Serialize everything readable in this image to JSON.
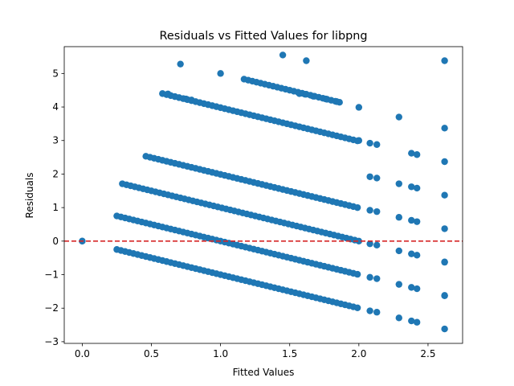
{
  "chart_data": {
    "type": "scatter",
    "title": "Residuals vs Fitted Values for libpng",
    "xlabel": "Fitted Values",
    "ylabel": "Residuals",
    "xlim": [
      -0.13,
      2.75
    ],
    "ylim": [
      -3.05,
      5.8
    ],
    "xticks": [
      0.0,
      0.5,
      1.0,
      1.5,
      2.0,
      2.5
    ],
    "xtick_labels": [
      "0.0",
      "0.5",
      "1.0",
      "1.5",
      "2.0",
      "2.5"
    ],
    "yticks": [
      -3,
      -2,
      -1,
      0,
      1,
      2,
      3,
      4,
      5
    ],
    "ytick_labels": [
      "−3",
      "−2",
      "−1",
      "0",
      "1",
      "2",
      "3",
      "4",
      "5"
    ],
    "reference_line": {
      "y": 0,
      "style": "dashed",
      "color": "#d62728"
    },
    "marker_color": "#1f77b4",
    "grid": false,
    "points": [
      [
        0.0,
        0.0
      ],
      [
        0.0,
        0.0
      ],
      [
        0.71,
        5.28
      ],
      [
        1.45,
        5.55
      ],
      [
        1.62,
        5.38
      ],
      [
        1.0,
        5.0
      ],
      [
        0.62,
        4.39
      ],
      [
        0.75,
        4.24
      ],
      [
        0.79,
        4.21
      ],
      [
        1.57,
        4.4
      ],
      [
        1.61,
        4.38
      ],
      [
        1.67,
        4.32
      ],
      [
        1.76,
        4.24
      ],
      [
        1.84,
        4.16
      ],
      [
        2.0,
        3.99
      ],
      [
        2.29,
        3.7
      ],
      [
        2.62,
        5.38
      ],
      [
        2.62,
        3.37
      ],
      [
        2.38,
        2.62
      ],
      [
        2.42,
        2.58
      ],
      [
        2.62,
        2.37
      ],
      [
        2.29,
        1.71
      ],
      [
        2.38,
        1.62
      ],
      [
        2.42,
        1.58
      ],
      [
        2.62,
        1.37
      ],
      [
        2.29,
        0.71
      ],
      [
        2.38,
        0.62
      ],
      [
        2.42,
        0.58
      ],
      [
        2.62,
        0.37
      ],
      [
        2.29,
        -0.29
      ],
      [
        2.38,
        -0.38
      ],
      [
        2.42,
        -0.42
      ],
      [
        2.62,
        -0.62
      ],
      [
        2.62,
        -0.63
      ],
      [
        2.29,
        -1.29
      ],
      [
        2.38,
        -1.38
      ],
      [
        2.42,
        -1.42
      ],
      [
        2.62,
        -1.62
      ],
      [
        2.62,
        -1.63
      ],
      [
        2.29,
        -2.29
      ],
      [
        2.38,
        -2.38
      ],
      [
        2.42,
        -2.42
      ],
      [
        2.62,
        -2.62
      ],
      [
        2.0,
        3.0
      ],
      [
        2.08,
        2.92
      ],
      [
        2.13,
        2.88
      ],
      [
        2.08,
        1.92
      ],
      [
        2.13,
        1.88
      ],
      [
        2.08,
        0.92
      ],
      [
        2.13,
        0.88
      ],
      [
        2.08,
        -0.08
      ],
      [
        2.13,
        -0.12
      ],
      [
        2.08,
        -1.08
      ],
      [
        2.13,
        -1.12
      ],
      [
        2.08,
        -2.08
      ],
      [
        2.13,
        -2.12
      ]
    ],
    "bands": [
      {
        "intercept": 6.0,
        "x_start": 1.17,
        "x_end": 1.88,
        "step": 0.03,
        "slope": -1.0
      },
      {
        "intercept": 4.98,
        "x_start": 0.58,
        "x_end": 2.0,
        "step": 0.03,
        "slope": -1.0
      },
      {
        "intercept": 2.99,
        "x_start": 0.46,
        "x_end": 2.0,
        "step": 0.03,
        "slope": -1.0
      },
      {
        "intercept": 2.0,
        "x_start": 0.29,
        "x_end": 2.0,
        "step": 0.03,
        "slope": -1.0
      },
      {
        "intercept": 1.0,
        "x_start": 0.25,
        "x_end": 2.0,
        "step": 0.03,
        "slope": -1.0
      },
      {
        "intercept": 0.0,
        "x_start": 0.25,
        "x_end": 2.0,
        "step": 0.03,
        "slope": -1.0
      }
    ]
  }
}
